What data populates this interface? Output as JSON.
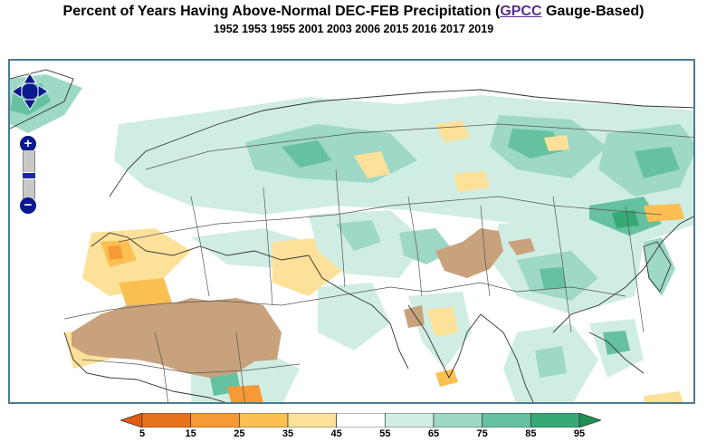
{
  "title": {
    "prefix": "Percent of Years Having Above-Normal DEC-FEB Precipitation (",
    "link": "GPCC",
    "suffix": " Gauge-Based)"
  },
  "subtitle": "1952 1953 1955 2001 2003 2006 2015 2016 2017 2019",
  "map": {
    "controls": {
      "pan_icon": "pan-arrows-icon",
      "zoom_in": "+",
      "zoom_out": "−",
      "zoom_level": 0.5
    }
  },
  "legend": {
    "labels": [
      "5",
      "15",
      "25",
      "35",
      "45",
      "55",
      "65",
      "75",
      "85",
      "95"
    ],
    "colors": [
      "#e8721c",
      "#f79a36",
      "#fbbf52",
      "#fde199",
      "#ffffff",
      "#d0ede4",
      "#9ed8c6",
      "#66c1a0",
      "#37a975"
    ],
    "arrow_low_color": "#e05a12",
    "arrow_high_color": "#208f56"
  }
}
